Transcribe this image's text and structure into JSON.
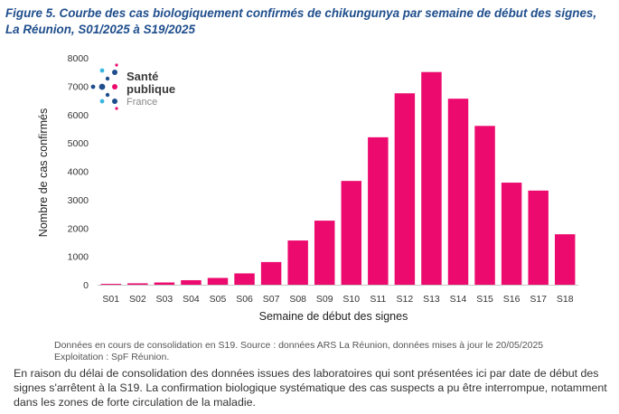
{
  "figure": {
    "title": "Figure 5. Courbe des cas biologiquement confirmés de chikungunya par semaine de début des signes, La Réunion, S01/2025 à S19/2025"
  },
  "logo": {
    "line1": "Santé",
    "line2": "publique",
    "line3": "France"
  },
  "colors": {
    "bar": "#ec0a6e",
    "title": "#1f4e8c"
  },
  "chart_data": {
    "type": "bar",
    "categories": [
      "S01",
      "S02",
      "S03",
      "S04",
      "S05",
      "S06",
      "S07",
      "S08",
      "S09",
      "S10",
      "S11",
      "S12",
      "S13",
      "S14",
      "S15",
      "S16",
      "S17",
      "S18"
    ],
    "values": [
      30,
      50,
      80,
      160,
      240,
      400,
      800,
      1560,
      2260,
      3660,
      5200,
      6750,
      7500,
      6560,
      5600,
      3600,
      3320,
      1780
    ],
    "xlabel": "Semaine de début des signes",
    "ylabel": "Nombre de cas confirmés",
    "ylim": [
      0,
      8000
    ],
    "yticks": [
      0,
      1000,
      2000,
      3000,
      4000,
      5000,
      6000,
      7000,
      8000
    ],
    "grid": false,
    "legend": "none"
  },
  "source_note": {
    "line1": "Données en cours de consolidation en S19. Source : données ARS La Réunion, données mises à jour le 20/05/2025",
    "line2": "Exploitation :  SpF Réunion."
  },
  "paragraph": "En raison du délai de consolidation des données issues des laboratoires qui sont présentées ici par date de début des signes s'arrêtent à la S19. La confirmation biologique systématique des cas suspects a pu être interrompue, notamment dans les zones de forte circulation de la maladie."
}
